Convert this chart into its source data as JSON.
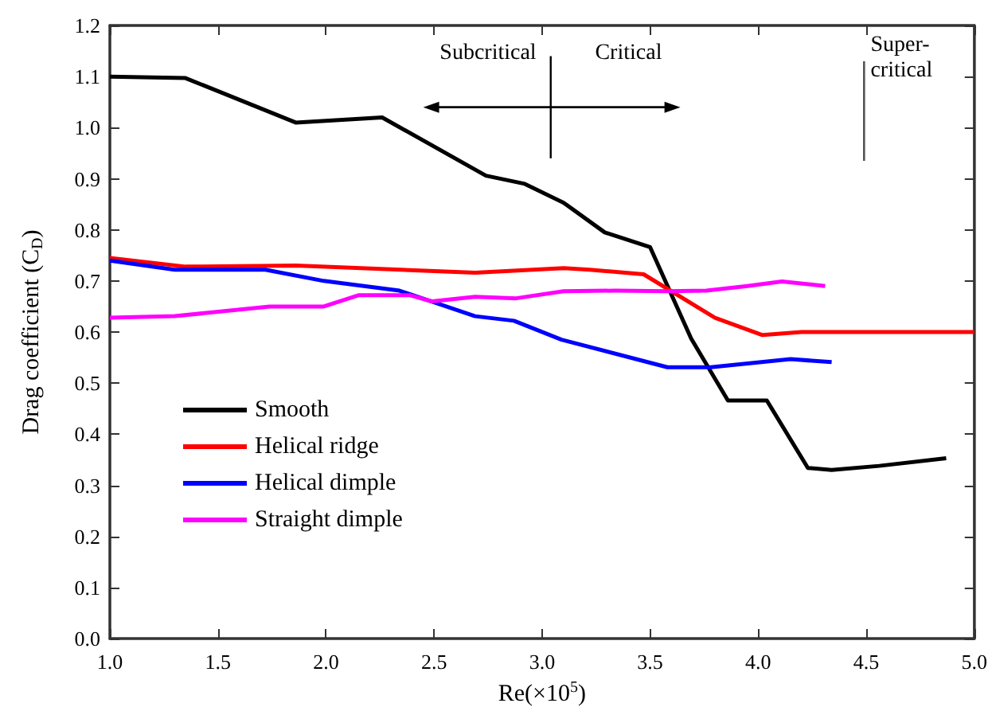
{
  "chart_data": {
    "type": "line",
    "xlabel": "Re(×10$^{5}$)",
    "ylabel": "Drag coefficient (C$_{D}$)",
    "xlim": [
      1,
      5
    ],
    "xticks": [
      {
        "value": 1,
        "label": "1.0"
      },
      1.5,
      {
        "value": 2,
        "label": "2.0"
      },
      2.5,
      {
        "value": 3,
        "label": "3.0"
      },
      3.5,
      {
        "value": 4,
        "label": "4.0"
      },
      4.5,
      {
        "value": 5,
        "label": "5.0"
      }
    ],
    "ylim": [
      0,
      1.2
    ],
    "yticks": [
      {
        "value": 0,
        "label": "0.0"
      },
      0.1,
      0.2,
      0.3,
      0.4,
      0.5,
      0.6,
      0.7,
      0.8,
      0.9,
      {
        "value": 1,
        "label": "1.0"
      },
      1.1,
      1.2
    ],
    "grid": false,
    "legend": "bottom left",
    "marker": "none",
    "line_style": "solid",
    "annotations": [
      "Subcritical",
      "Critical",
      "Super-\ncritical"
    ],
    "series": [
      {
        "name": "Smooth",
        "color": "#000000",
        "x": [
          1.0,
          1.35,
          1.86,
          2.26,
          2.74,
          2.92,
          3.1,
          3.29,
          3.5,
          3.69,
          3.86,
          4.04,
          4.23,
          4.34,
          4.56,
          4.87
        ],
        "values": [
          1.1,
          1.097,
          1.01,
          1.02,
          0.906,
          0.89,
          0.853,
          0.795,
          0.766,
          0.587,
          0.466,
          0.466,
          0.334,
          0.33,
          0.338,
          0.353
        ]
      },
      {
        "name": "Helical ridge",
        "color": "#ff0000",
        "x": [
          1.0,
          1.35,
          1.86,
          2.69,
          3.1,
          3.22,
          3.47,
          3.8,
          4.02,
          4.2,
          5.0
        ],
        "values": [
          0.745,
          0.728,
          0.73,
          0.716,
          0.725,
          0.722,
          0.713,
          0.628,
          0.594,
          0.6,
          0.6
        ]
      },
      {
        "name": "Helical dimple",
        "color": "#0000ff",
        "x": [
          1.0,
          1.3,
          1.72,
          1.99,
          2.34,
          2.69,
          2.87,
          3.09,
          3.58,
          3.78,
          4.15,
          4.34
        ],
        "values": [
          0.74,
          0.722,
          0.722,
          0.7,
          0.681,
          0.631,
          0.622,
          0.585,
          0.531,
          0.531,
          0.547,
          0.541
        ]
      },
      {
        "name": "Straight dimple",
        "color": "#ff00ff",
        "x": [
          1.0,
          1.3,
          1.74,
          1.99,
          2.15,
          2.39,
          2.49,
          2.69,
          2.88,
          3.1,
          3.34,
          3.58,
          3.76,
          3.95,
          4.11,
          4.31
        ],
        "values": [
          0.628,
          0.631,
          0.65,
          0.65,
          0.672,
          0.672,
          0.66,
          0.669,
          0.666,
          0.68,
          0.681,
          0.68,
          0.681,
          0.69,
          0.699,
          0.69
        ]
      }
    ]
  }
}
